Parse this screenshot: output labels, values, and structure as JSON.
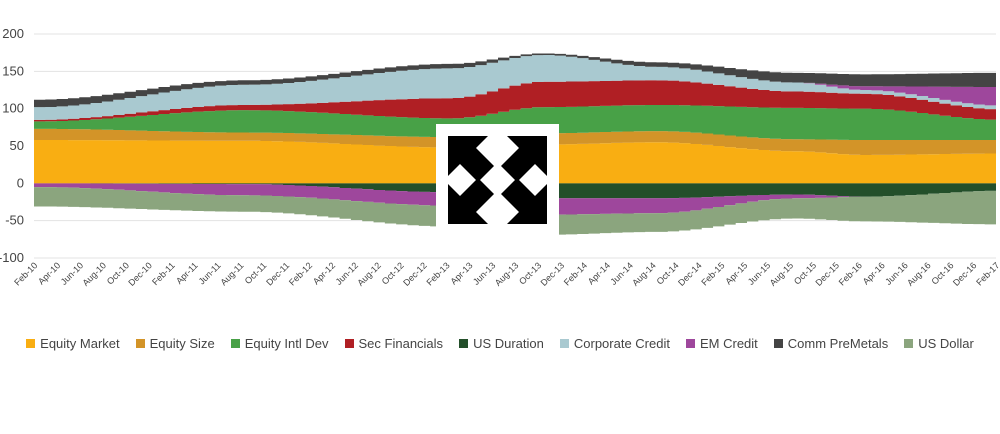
{
  "chart_data": {
    "type": "area",
    "stacked": true,
    "title": "",
    "xlabel": "",
    "ylabel": "",
    "ylim": [
      -100,
      200
    ],
    "yticks": [
      -100,
      -50,
      0,
      50,
      100,
      150,
      200
    ],
    "ytick_labels": [
      "-100",
      "-50",
      "0",
      "50",
      "100",
      "150",
      "200"
    ],
    "grid": true,
    "legend_position": "bottom",
    "x_tick_labels": [
      "Feb-10",
      "Apr-10",
      "Jun-10",
      "Aug-10",
      "Oct-10",
      "Dec-10",
      "Feb-11",
      "Apr-11",
      "Jun-11",
      "Aug-11",
      "Oct-11",
      "Dec-11",
      "Feb-12",
      "Apr-12",
      "Jun-12",
      "Aug-12",
      "Oct-12",
      "Dec-12",
      "Feb-13",
      "Apr-13",
      "Jun-13",
      "Aug-13",
      "Oct-13",
      "Dec-13",
      "Feb-14",
      "Apr-14",
      "Jun-14",
      "Aug-14",
      "Oct-14",
      "Dec-14",
      "Feb-15",
      "Apr-15",
      "Jun-15",
      "Aug-15",
      "Oct-15",
      "Dec-15",
      "Feb-16",
      "Apr-16",
      "Jun-16",
      "Aug-16",
      "Oct-16",
      "Dec-16",
      "Feb-17"
    ],
    "x_key_dates": [
      "Feb-10",
      "Aug-11",
      "Feb-13",
      "Oct-13",
      "Aug-14",
      "Aug-15",
      "Feb-16",
      "Feb-17"
    ],
    "series": [
      {
        "name": "Equity Market",
        "color": "#F9AE12",
        "values": [
          58,
          57,
          48,
          52,
          55,
          43,
          38,
          40
        ]
      },
      {
        "name": "Equity Size",
        "color": "#D39428",
        "values": [
          15,
          11,
          14,
          15,
          15,
          16,
          20,
          18
        ]
      },
      {
        "name": "Equity Intl Dev",
        "color": "#48A147",
        "values": [
          10,
          30,
          25,
          35,
          35,
          42,
          42,
          27
        ]
      },
      {
        "name": "Sec Financials",
        "color": "#B01F24",
        "values": [
          2,
          7,
          27,
          34,
          33,
          22,
          20,
          14
        ]
      },
      {
        "name": "Corporate Credit",
        "color": "#A9C9D0",
        "values": [
          17,
          27,
          40,
          36,
          18,
          12,
          5,
          5
        ]
      },
      {
        "name": "EM Credit (positive)",
        "color": "#9E479C",
        "values": [
          0,
          0,
          0,
          0,
          0,
          0,
          5,
          25
        ]
      },
      {
        "name": "Comm PreMetals",
        "color": "#444444",
        "values": [
          10,
          6,
          6,
          2,
          6,
          13,
          16,
          19
        ]
      },
      {
        "name": "US Duration (negative)",
        "color": "#234F2A",
        "values": [
          0,
          -1,
          -12,
          -20,
          -20,
          -15,
          -18,
          -10
        ]
      },
      {
        "name": "EM Credit (negative)",
        "color": "#9E479C",
        "values": [
          -5,
          -15,
          -18,
          -22,
          -20,
          -5,
          0,
          0
        ]
      },
      {
        "name": "US Dollar",
        "color": "#8BA57E",
        "values": [
          -26,
          -22,
          -28,
          -27,
          -25,
          -27,
          -33,
          -45
        ]
      }
    ],
    "legend": [
      {
        "label": "Equity Market",
        "color": "#F9AE12"
      },
      {
        "label": "Equity Size",
        "color": "#D39428"
      },
      {
        "label": "Equity Intl Dev",
        "color": "#48A147"
      },
      {
        "label": "Sec Financials",
        "color": "#B01F24"
      },
      {
        "label": "US Duration",
        "color": "#234F2A"
      },
      {
        "label": "Corporate Credit",
        "color": "#A9C9D0"
      },
      {
        "label": "EM Credit",
        "color": "#9E479C"
      },
      {
        "label": "Comm PreMetals",
        "color": "#444444"
      },
      {
        "label": "US Dollar",
        "color": "#8BA57E"
      }
    ]
  },
  "overlay": {
    "icon": "expand-arrows-icon"
  }
}
